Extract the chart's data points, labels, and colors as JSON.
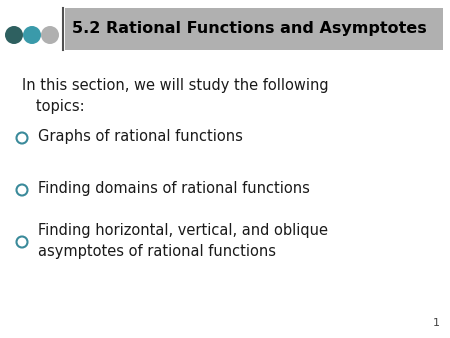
{
  "title": "5.2 Rational Functions and Asymptotes",
  "title_bg_color": "#b0b0b0",
  "title_text_color": "#000000",
  "slide_bg_color": "#ffffff",
  "intro_text": "In this section, we will study the following\n   topics:",
  "bullet_points": [
    "Graphs of rational functions",
    "Finding domains of rational functions",
    "Finding horizontal, vertical, and oblique\nasymptotes of rational functions"
  ],
  "bullet_color": "#3a8a9a",
  "dot_colors": [
    "#2e6060",
    "#3a9aaa",
    "#b0b0b0"
  ],
  "vertical_line_color": "#505050",
  "page_number": "1",
  "font_size_title": 11.5,
  "font_size_body": 10.5,
  "font_size_page": 8
}
